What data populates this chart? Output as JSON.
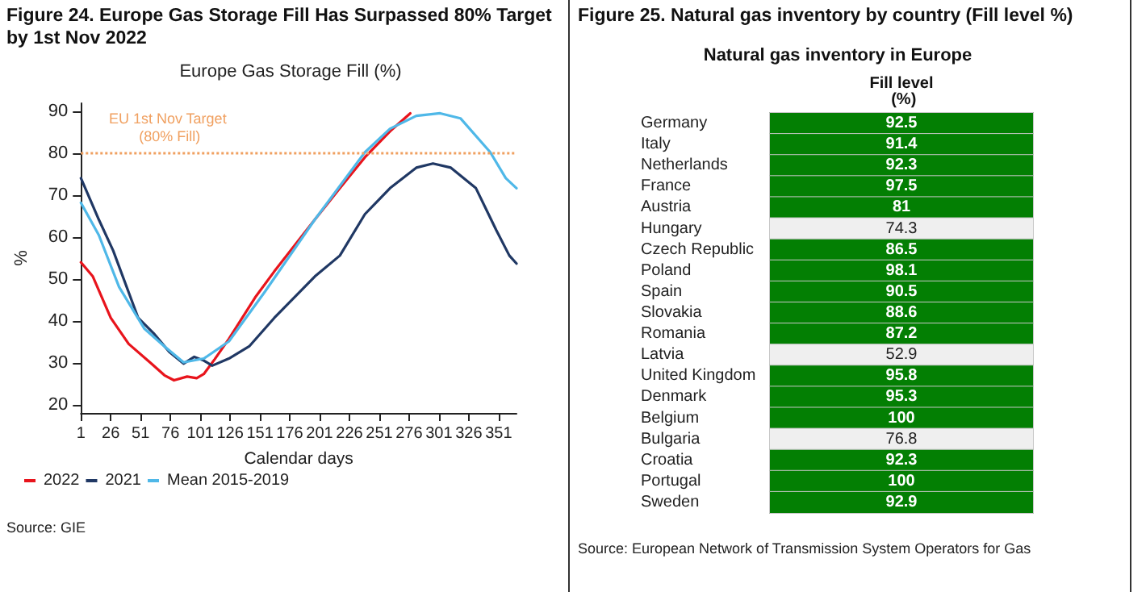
{
  "chart_data": [
    {
      "type": "line",
      "title": "Figure 24. Europe Gas Storage Fill Has Surpassed 80% Target by 1st Nov 2022",
      "subtitle": "Europe Gas Storage Fill (%)",
      "xlabel": "Calendar days",
      "ylabel": "%",
      "xlim": [
        1,
        366
      ],
      "xticks": [
        1,
        26,
        51,
        76,
        101,
        126,
        151,
        176,
        201,
        226,
        251,
        276,
        301,
        326,
        351
      ],
      "ylim": [
        18,
        92
      ],
      "yticks": [
        20,
        30,
        40,
        50,
        60,
        70,
        80,
        90
      ],
      "grid": false,
      "legend": "bottom left",
      "marker": "none",
      "line_style": "solid",
      "series": [
        {
          "name": "2022",
          "color": "#e8141c",
          "x": [
            1,
            11,
            26,
            41,
            60,
            71,
            79,
            90,
            98,
            104,
            113,
            125,
            147,
            163,
            197,
            218,
            239,
            260,
            277
          ],
          "values": [
            54,
            50.6,
            40.7,
            34.5,
            29.8,
            27,
            25.8,
            26.7,
            26.3,
            27.3,
            30.8,
            35.7,
            45.6,
            51.8,
            64.2,
            71.7,
            79.1,
            85.3,
            89.6
          ]
        },
        {
          "name": "2021",
          "color": "#203864",
          "x": [
            1,
            16,
            28,
            49,
            62,
            75,
            87,
            96,
            104,
            111,
            125,
            142,
            163,
            197,
            218,
            239,
            260,
            282,
            296,
            311,
            332,
            349,
            360,
            366
          ],
          "values": [
            74.1,
            64.2,
            56.8,
            40.7,
            37,
            32.6,
            29.8,
            31.4,
            30.5,
            29.3,
            31,
            33.9,
            40.7,
            50.6,
            55.6,
            65.5,
            71.7,
            76.6,
            77.6,
            76.6,
            71.7,
            61.7,
            55.6,
            53.7
          ]
        },
        {
          "name": "Mean 2015-2019",
          "color": "#4fb8e8",
          "x": [
            1,
            16,
            33,
            54,
            71,
            87,
            104,
            125,
            155,
            197,
            239,
            260,
            282,
            302,
            319,
            344,
            357,
            366
          ],
          "values": [
            68.2,
            60.5,
            48.1,
            38.2,
            33.9,
            30.1,
            31,
            35.1,
            46.9,
            64.2,
            80.3,
            85.9,
            89,
            89.6,
            88.4,
            80.3,
            74.1,
            71.7
          ]
        }
      ],
      "ref_lines": [
        {
          "axis": "y",
          "value": 80,
          "label": "EU 1st Nov Target (80% Fill)",
          "color": "#f0a060",
          "line_style": "dotted"
        }
      ],
      "annotations": [
        "Source: GIE"
      ]
    },
    {
      "type": "other",
      "title": "Figure 25. Natural gas inventory by country (Fill level %)",
      "subtitle": "Natural gas inventory in Europe",
      "xlabel": "Fill level (%)",
      "categories": [
        "Germany",
        "Italy",
        "Netherlands",
        "France",
        "Austria",
        "Hungary",
        "Czech Republic",
        "Poland",
        "Spain",
        "Slovakia",
        "Romania",
        "Latvia",
        "United Kingdom",
        "Denmark",
        "Belgium",
        "Bulgaria",
        "Croatia",
        "Portugal",
        "Sweden"
      ],
      "values": [
        92.5,
        91.4,
        92.3,
        97.5,
        81,
        74.3,
        86.5,
        98.1,
        90.5,
        88.6,
        87.2,
        52.9,
        95.8,
        95.3,
        100,
        76.8,
        92.3,
        100,
        92.9
      ],
      "colors": [
        "#037f03",
        "#037f03",
        "#037f03",
        "#037f03",
        "#037f03",
        "#efefef",
        "#037f03",
        "#037f03",
        "#037f03",
        "#037f03",
        "#037f03",
        "#efefef",
        "#037f03",
        "#037f03",
        "#037f03",
        "#efefef",
        "#037f03",
        "#037f03",
        "#037f03"
      ],
      "data_labels": true,
      "annotations": [
        "Source: European Network of Transmission System Operators for Gas"
      ]
    }
  ]
}
